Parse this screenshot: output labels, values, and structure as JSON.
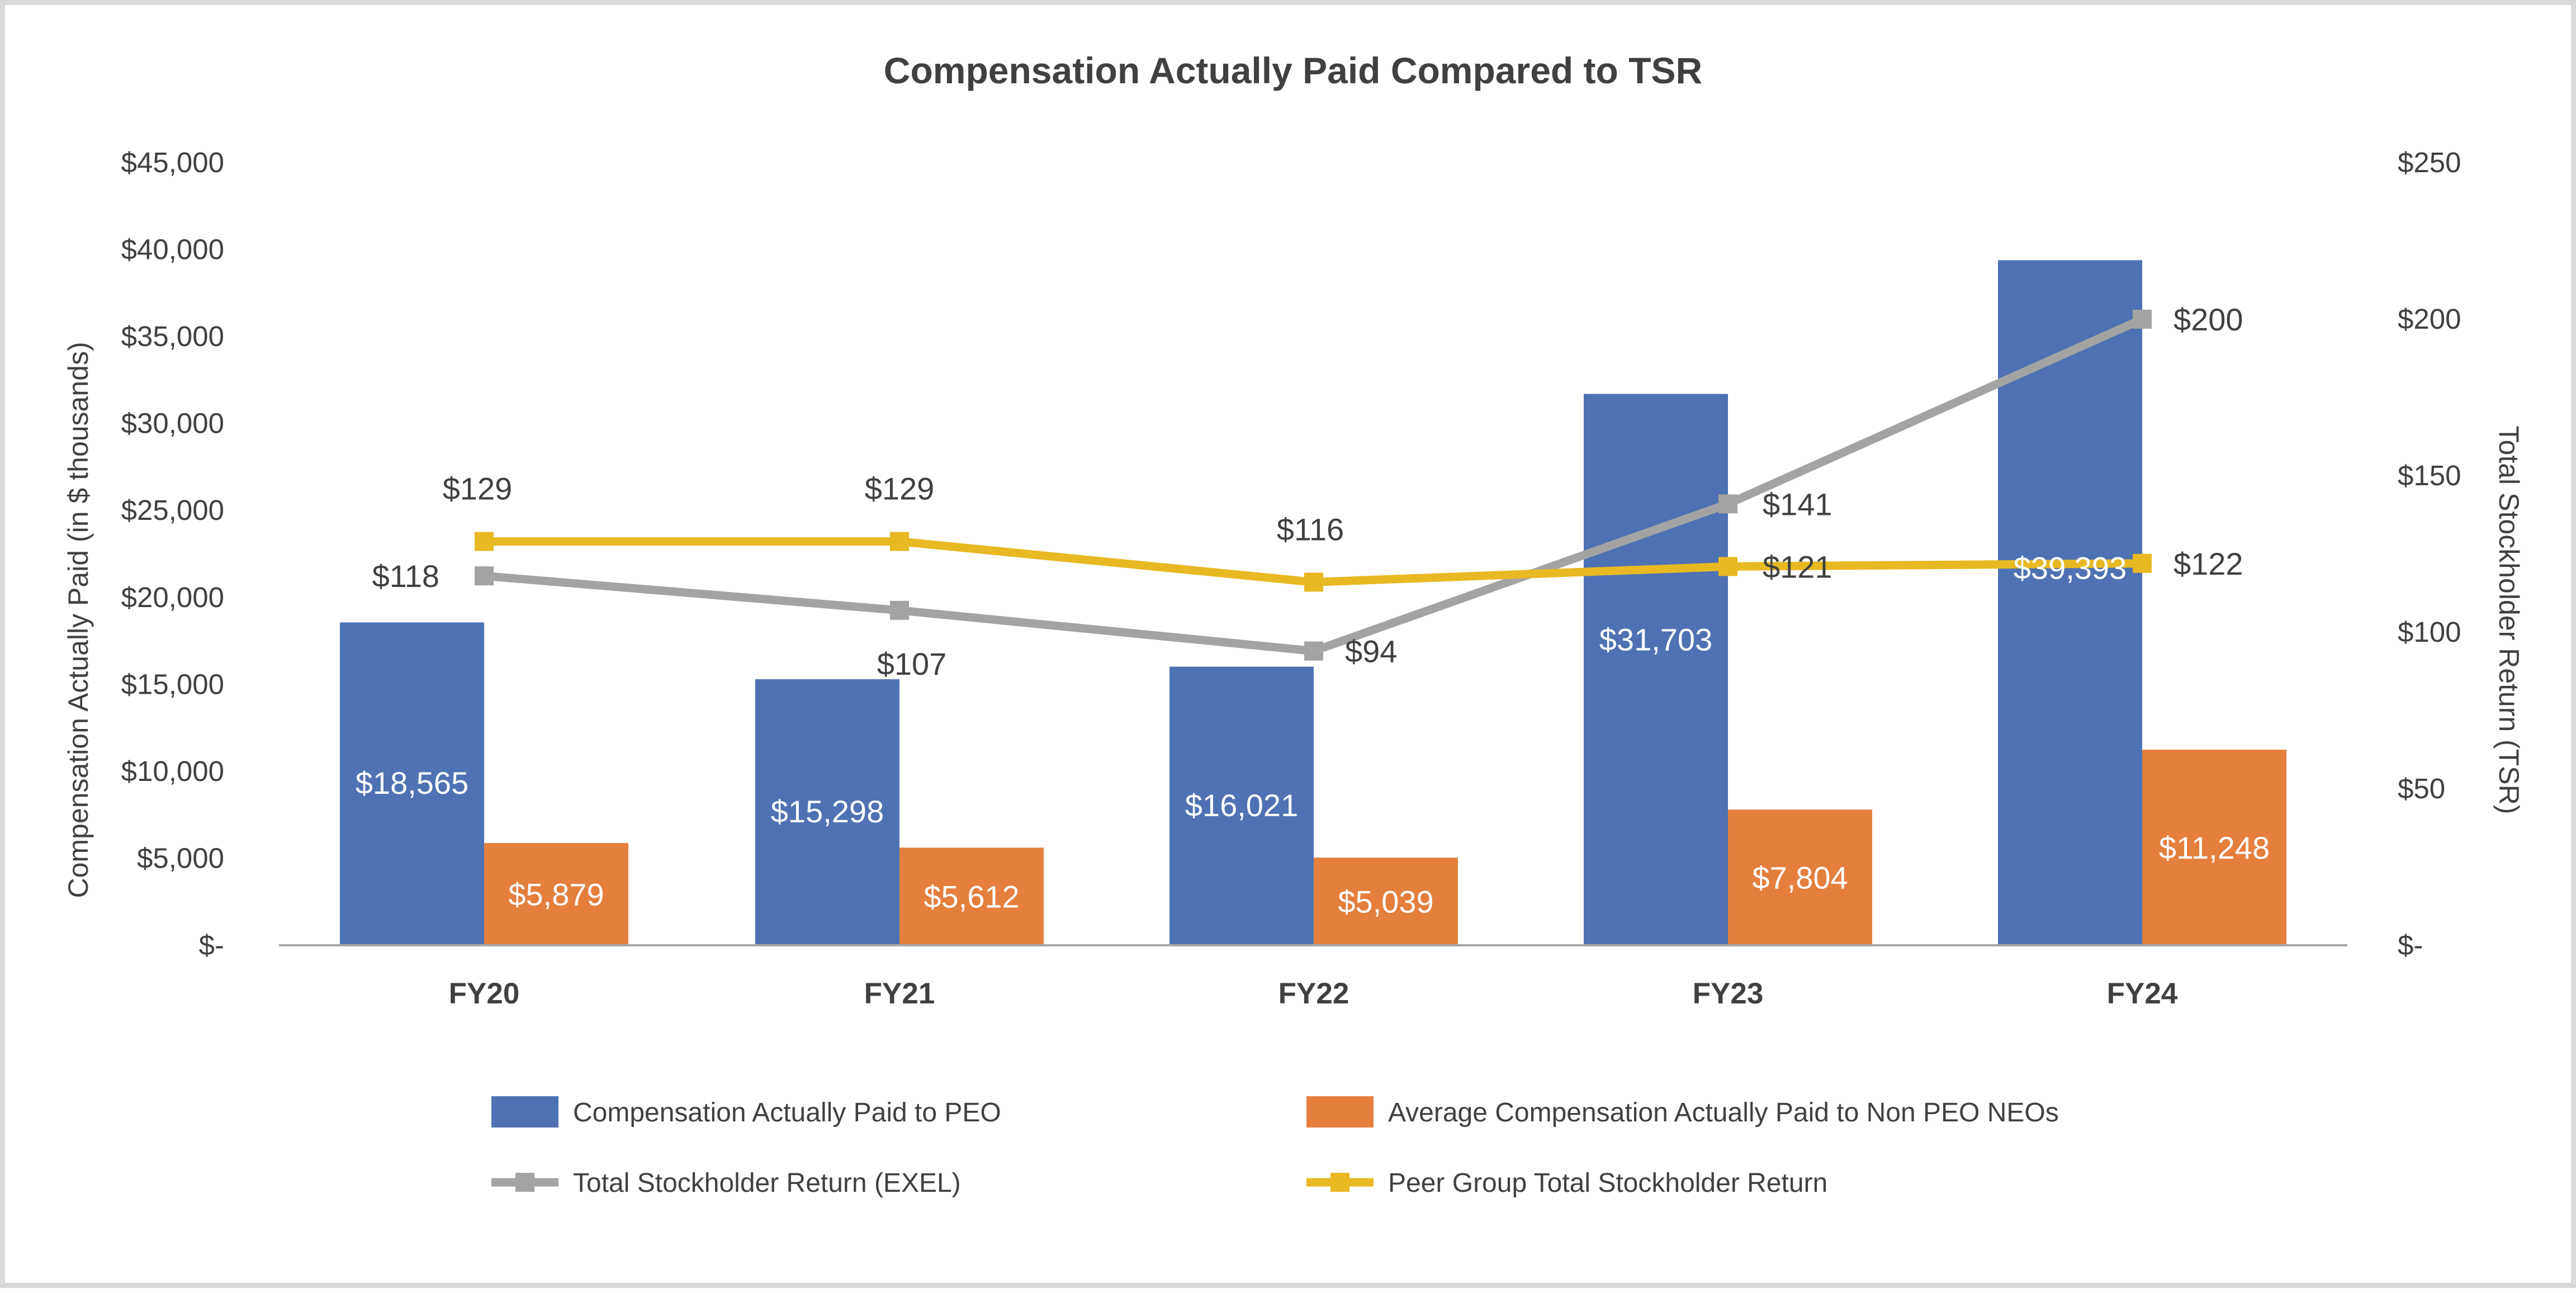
{
  "chart_data": {
    "type": "bar",
    "title": "Compensation Actually Paid Compared to TSR",
    "categories": [
      "FY20",
      "FY21",
      "FY22",
      "FY23",
      "FY24"
    ],
    "left_axis": {
      "label": "Compensation Actually Paid (in $ thousands)",
      "ylim": [
        0,
        45000
      ],
      "ticks": [
        0,
        5000,
        10000,
        15000,
        20000,
        25000,
        30000,
        35000,
        40000,
        45000
      ],
      "tick_labels": [
        "$-",
        "$5,000",
        "$10,000",
        "$15,000",
        "$20,000",
        "$25,000",
        "$30,000",
        "$35,000",
        "$40,000",
        "$45,000"
      ]
    },
    "right_axis": {
      "label": "Total Stockholder Return (TSR)",
      "ylim": [
        0,
        250
      ],
      "ticks": [
        0,
        50,
        100,
        150,
        200,
        250
      ],
      "tick_labels": [
        "$-",
        "$50",
        "$100",
        "$150",
        "$200",
        "$250"
      ]
    },
    "bar_series": [
      {
        "name": "Compensation Actually Paid to PEO",
        "color": "#4e72b3",
        "values": [
          18565,
          15298,
          16021,
          31703,
          39393
        ],
        "labels": [
          "$18,565",
          "$15,298",
          "$16,021",
          "$31,703",
          "$39,393"
        ]
      },
      {
        "name": "Average Compensation Actually Paid to Non PEO NEOs",
        "color": "#e47f3d",
        "values": [
          5879,
          5612,
          5039,
          7804,
          11248
        ],
        "labels": [
          "$5,879",
          "$5,612",
          "$5,039",
          "$7,804",
          "$11,248"
        ]
      }
    ],
    "line_series": [
      {
        "name": "Total Stockholder Return (EXEL)",
        "color": "#a3a3a3",
        "axis": "right",
        "values": [
          118,
          107,
          94,
          141,
          200
        ],
        "labels": [
          "$118",
          "$107",
          "$94",
          "$141",
          "$200"
        ]
      },
      {
        "name": "Peer Group Total Stockholder Return",
        "color": "#e8b923",
        "axis": "right",
        "values": [
          129,
          129,
          116,
          121,
          122
        ],
        "labels": [
          "$129",
          "$129",
          "$116",
          "$121",
          "$122"
        ]
      }
    ],
    "legend_position": "bottom"
  }
}
